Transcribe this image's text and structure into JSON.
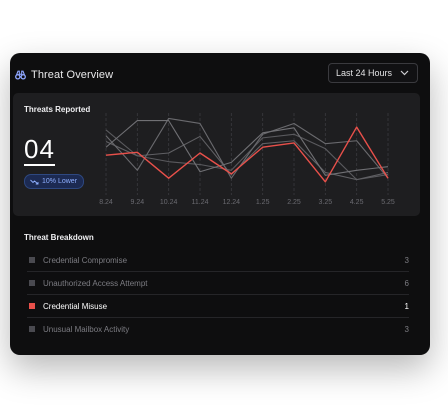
{
  "header": {
    "title": "Threat Overview",
    "icon": "binoculars-icon",
    "range_select": {
      "value": "Last 24 Hours",
      "icon": "chevron-down-icon"
    }
  },
  "threats_panel": {
    "title": "Threats Reported",
    "count": "04",
    "trend": {
      "label": "10% Lower",
      "icon": "trend-down-icon",
      "color": "#8fb0ff"
    }
  },
  "chart_data": {
    "type": "line",
    "title": "",
    "xlabel": "",
    "ylabel": "",
    "categories": [
      "8.24",
      "9.24",
      "10.24",
      "11.24",
      "12.24",
      "1.25",
      "2.25",
      "3.25",
      "4.25",
      "5.25"
    ],
    "ylim": [
      0,
      10
    ],
    "grid": {
      "vertical": true,
      "horizontal": false
    },
    "legend": "none",
    "series": [
      {
        "color": "#e8504a",
        "highlight": true,
        "values": [
          4.7,
          5.1,
          1.5,
          5.0,
          2.1,
          5.8,
          6.4,
          1.0,
          8.6,
          1.5
        ]
      },
      {
        "color": "#5a5a5e",
        "values": [
          8.2,
          4.6,
          3.8,
          3.4,
          2.6,
          7.1,
          7.6,
          5.6,
          1.3,
          2.0
        ]
      },
      {
        "color": "#606064",
        "values": [
          6.6,
          4.6,
          5.0,
          7.3,
          2.0,
          6.3,
          6.7,
          2.3,
          1.3,
          2.3
        ]
      },
      {
        "color": "#6a6a6e",
        "values": [
          7.4,
          2.6,
          9.8,
          9.1,
          1.5,
          7.6,
          9.1,
          6.3,
          6.7,
          1.5
        ]
      },
      {
        "color": "#707074",
        "values": [
          5.8,
          9.5,
          9.5,
          2.4,
          3.7,
          7.8,
          8.5,
          1.9,
          2.6,
          3.1
        ]
      }
    ]
  },
  "breakdown": {
    "title": "Threat Breakdown",
    "items": [
      {
        "name": "Credential Compromise",
        "count": "3",
        "active": false
      },
      {
        "name": "Unauthorized Access Attempt",
        "count": "6",
        "active": false
      },
      {
        "name": "Credential Misuse",
        "count": "1",
        "active": true
      },
      {
        "name": "Unusual Mailbox Activity",
        "count": "3",
        "active": false
      }
    ]
  }
}
